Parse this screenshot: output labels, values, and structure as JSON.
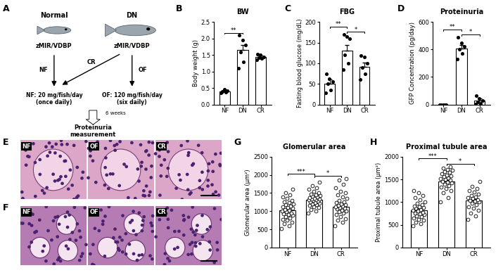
{
  "panels": [
    "A",
    "B",
    "C",
    "D",
    "E",
    "F",
    "G",
    "H"
  ],
  "diagram": {
    "groups": [
      {
        "name": "Normal",
        "model": "zMIR/VDBP"
      },
      {
        "name": "DN",
        "model": "zMIR/VDBP"
      }
    ],
    "arrows": [
      "NF",
      "OF",
      "CR"
    ],
    "regimens": [
      [
        "NF: 20 mg/fish/day",
        "(once daily)"
      ],
      [
        "OF: 120 mg/fish/day",
        "(six daily)"
      ]
    ],
    "duration": "6 weeks",
    "endpoint": [
      "Proteinuria",
      "measurement"
    ]
  },
  "images": {
    "E": [
      "NF",
      "OF",
      "CR"
    ],
    "F": [
      "NF",
      "OF",
      "CR"
    ]
  },
  "chart_data": [
    {
      "type": "bar",
      "title": "BW",
      "y_label": "Body weight (g)",
      "categories": [
        "NF",
        "DN",
        "CR"
      ],
      "values": [
        0.4,
        1.65,
        1.45
      ],
      "errors": [
        0.03,
        0.15,
        0.03
      ],
      "points": [
        [
          0.35,
          0.37,
          0.4,
          0.42,
          0.45,
          0.38
        ],
        [
          1.1,
          1.3,
          1.6,
          1.8,
          1.95,
          2.1
        ],
        [
          1.35,
          1.4,
          1.42,
          1.45,
          1.5,
          1.52
        ]
      ],
      "marker": "filled",
      "color": "#ffffff",
      "ylim": [
        0.0,
        2.5
      ],
      "yticks": [
        0.0,
        0.5,
        1.0,
        1.5,
        2.0,
        2.5
      ],
      "comparisons": [
        {
          "pair": [
            0,
            1
          ],
          "label": "**"
        }
      ]
    },
    {
      "type": "bar",
      "title": "FBG",
      "y_label": "Fasting blood glucose (mg/dL)",
      "categories": [
        "NF",
        "DN",
        "CR"
      ],
      "values": [
        50,
        130,
        92
      ],
      "errors": [
        10,
        15,
        10
      ],
      "points": [
        [
          28,
          35,
          50,
          55,
          62,
          75
        ],
        [
          85,
          100,
          120,
          160,
          165,
          170
        ],
        [
          60,
          75,
          90,
          100,
          115,
          118
        ]
      ],
      "marker": "filled",
      "color": "#ffffff",
      "ylim": [
        0,
        200
      ],
      "yticks": [
        0,
        50,
        100,
        150,
        200
      ],
      "comparisons": [
        {
          "pair": [
            0,
            1
          ],
          "label": "**"
        },
        {
          "pair": [
            1,
            2
          ],
          "label": "*"
        }
      ]
    },
    {
      "type": "bar",
      "title": "Proteinuria",
      "y_label": "GFP Concentration (pg/day)",
      "categories": [
        "NF",
        "DN",
        "CR"
      ],
      "values": [
        0,
        405,
        30
      ],
      "errors": [
        0,
        30,
        12
      ],
      "points": [
        [
          0,
          0,
          0,
          0,
          0
        ],
        [
          330,
          370,
          400,
          420,
          450,
          490
        ],
        [
          5,
          10,
          20,
          30,
          45,
          65
        ]
      ],
      "marker": "filled",
      "color": "#ffffff",
      "ylim": [
        0,
        600
      ],
      "yticks": [
        0,
        200,
        400,
        600
      ],
      "comparisons": [
        {
          "pair": [
            0,
            1
          ],
          "label": "**"
        },
        {
          "pair": [
            1,
            2
          ],
          "label": "*"
        }
      ]
    },
    {
      "type": "bar",
      "title": "Glomerular area",
      "y_label": "Glomerular area (μm²)",
      "categories": [
        "NF",
        "DN",
        "CR"
      ],
      "values": [
        1030,
        1320,
        1130
      ],
      "errors": [
        45,
        40,
        55
      ],
      "points": [
        [
          520,
          600,
          650,
          700,
          750,
          780,
          820,
          850,
          880,
          900,
          920,
          950,
          980,
          1000,
          1020,
          1050,
          1080,
          1100,
          1120,
          1150,
          1180,
          1200,
          1230,
          1260,
          1300,
          1350,
          1400,
          1450,
          1500,
          1600
        ],
        [
          950,
          1000,
          1050,
          1100,
          1130,
          1160,
          1180,
          1200,
          1220,
          1240,
          1260,
          1280,
          1300,
          1310,
          1320,
          1330,
          1340,
          1360,
          1380,
          1400,
          1420,
          1440,
          1460,
          1480,
          1500,
          1550,
          1600,
          1650,
          1700,
          1800
        ],
        [
          600,
          700,
          760,
          800,
          850,
          900,
          950,
          980,
          1000,
          1030,
          1060,
          1080,
          1100,
          1120,
          1140,
          1160,
          1180,
          1200,
          1230,
          1260,
          1300,
          1350,
          1400,
          1450,
          1500,
          1550,
          1650,
          1750,
          1850,
          1900
        ]
      ],
      "marker": "open",
      "color": "#ffffff",
      "ylim": [
        0,
        2500
      ],
      "yticks": [
        0,
        500,
        1000,
        1500,
        2000,
        2500
      ],
      "comparisons": [
        {
          "pair": [
            0,
            1
          ],
          "label": "***"
        },
        {
          "pair": [
            1,
            2
          ],
          "label": "*"
        }
      ]
    },
    {
      "type": "bar",
      "title": "Proximal tubule area",
      "y_label": "Proximal tubule area (μm²)",
      "categories": [
        "NF",
        "DN",
        "CR"
      ],
      "values": [
        820,
        1450,
        1030
      ],
      "errors": [
        40,
        35,
        40
      ],
      "points": [
        [
          480,
          520,
          560,
          600,
          620,
          650,
          680,
          700,
          720,
          740,
          760,
          780,
          800,
          820,
          840,
          860,
          880,
          900,
          920,
          950,
          980,
          1000,
          1050,
          1100,
          1150,
          1200,
          1250
        ],
        [
          1000,
          1100,
          1200,
          1250,
          1300,
          1330,
          1360,
          1390,
          1420,
          1440,
          1460,
          1480,
          1500,
          1520,
          1540,
          1560,
          1580,
          1600,
          1620,
          1650,
          1680,
          1700,
          1720,
          1750,
          1780
        ],
        [
          620,
          700,
          760,
          820,
          860,
          900,
          940,
          970,
          1000,
          1020,
          1040,
          1060,
          1080,
          1100,
          1120,
          1150,
          1180,
          1220,
          1260,
          1300,
          1350,
          1450
        ]
      ],
      "marker": "open",
      "color": "#ffffff",
      "ylim": [
        0,
        2000
      ],
      "yticks": [
        0,
        500,
        1000,
        1500,
        2000
      ],
      "comparisons": [
        {
          "pair": [
            0,
            1
          ],
          "label": "***"
        },
        {
          "pair": [
            1,
            2
          ],
          "label": "*"
        }
      ]
    }
  ]
}
